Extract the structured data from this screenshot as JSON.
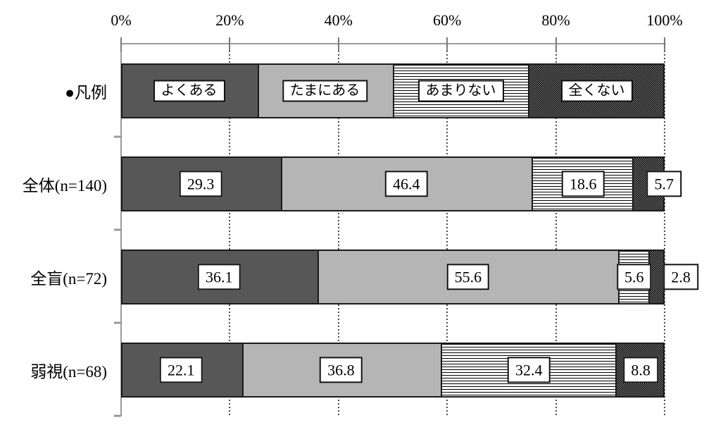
{
  "chart_data": {
    "type": "bar",
    "variant": "horizontal-stacked-percent",
    "title": "",
    "x_axis": {
      "tick_labels": [
        "0%",
        "20%",
        "40%",
        "60%",
        "80%",
        "100%"
      ],
      "range": [
        0,
        100
      ],
      "grid": "dotted-vertical-at-each-tick"
    },
    "legend": {
      "row_label": "●凡例",
      "entries": [
        {
          "label": "よくある",
          "pattern": "solid-dark",
          "span_pct": 25
        },
        {
          "label": "たまにある",
          "pattern": "solid-light",
          "span_pct": 25
        },
        {
          "label": "あまりない",
          "pattern": "h-stripes",
          "span_pct": 25
        },
        {
          "label": "全くない",
          "pattern": "dither-dark",
          "span_pct": 25
        }
      ]
    },
    "rows": [
      {
        "label": "全体(n=140)",
        "values": [
          29.3,
          46.4,
          18.6,
          5.7
        ],
        "value_labels": [
          "29.3",
          "46.4",
          "18.6",
          "5.7"
        ],
        "label_center_pct_overrides": {
          "3": 99.9
        }
      },
      {
        "label": "全盲(n=72)",
        "values": [
          36.1,
          55.6,
          5.6,
          2.8
        ],
        "value_labels": [
          "36.1",
          "55.6",
          "5.6",
          "2.8"
        ],
        "label_center_pct_overrides": {
          "3": 103.0
        }
      },
      {
        "label": "弱視(n=68)",
        "values": [
          22.1,
          36.8,
          32.4,
          8.8
        ],
        "value_labels": [
          "22.1",
          "36.8",
          "32.4",
          "8.8"
        ],
        "label_center_pct_overrides": {}
      }
    ],
    "colors": {
      "solid_dark": "#575757",
      "solid_light": "#b5b5b5",
      "stripe_line": "#000000",
      "stripe_bg": "#ffffff",
      "dither_black": "#000000",
      "dither_gray": "#7d7d7d",
      "bar_border": "#1a1a1a",
      "axis_line": "#9a9a9a",
      "grid_dot": "#4a4a4a",
      "label_box_border": "#111111",
      "label_box_bg": "#ffffff",
      "text": "#000000"
    }
  }
}
